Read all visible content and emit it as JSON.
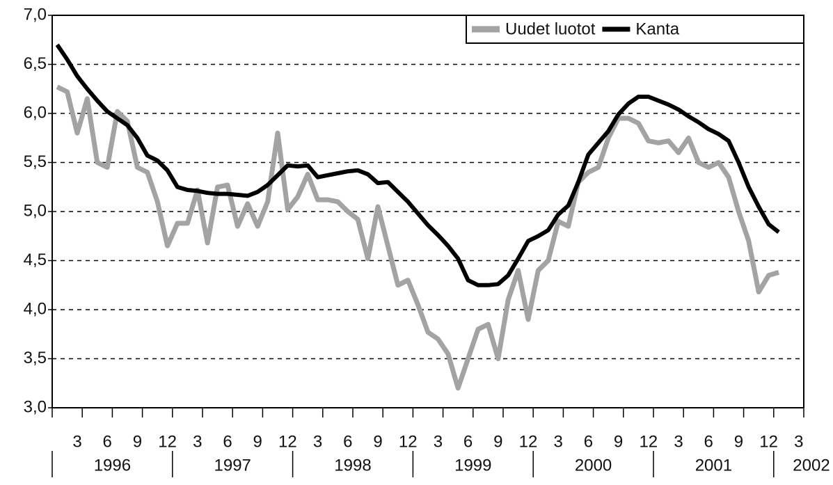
{
  "chart_data": {
    "type": "line",
    "categories": [
      null,
      null,
      "3",
      null,
      null,
      "6",
      null,
      null,
      "9",
      null,
      null,
      "12",
      null,
      null,
      "3",
      null,
      null,
      "6",
      null,
      null,
      "9",
      null,
      null,
      "12",
      null,
      null,
      "3",
      null,
      null,
      "6",
      null,
      null,
      "9",
      null,
      null,
      "12",
      null,
      null,
      "3",
      null,
      null,
      "6",
      null,
      null,
      "9",
      null,
      null,
      "12",
      null,
      null,
      "3",
      null,
      null,
      "6",
      null,
      null,
      "9",
      null,
      null,
      "12",
      null,
      null,
      "3",
      null,
      null,
      "6",
      null,
      null,
      "9",
      null,
      null,
      "12",
      null,
      null,
      "3"
    ],
    "years": [
      "1996",
      "1997",
      "1998",
      "1999",
      "2000",
      "2001",
      "2002"
    ],
    "series": [
      {
        "name": "Uudet luotot",
        "color": "#a3a3a3",
        "values": [
          6.27,
          6.22,
          5.8,
          6.15,
          5.5,
          5.45,
          6.02,
          5.92,
          5.45,
          5.4,
          5.1,
          4.65,
          4.88,
          4.88,
          5.22,
          4.68,
          5.25,
          5.27,
          4.85,
          5.08,
          4.85,
          5.1,
          5.8,
          5.02,
          5.15,
          5.38,
          5.12,
          5.12,
          5.1,
          5.0,
          4.92,
          4.52,
          5.05,
          4.65,
          4.25,
          4.3,
          4.05,
          3.77,
          3.7,
          3.55,
          3.2,
          3.5,
          3.8,
          3.85,
          3.5,
          4.1,
          4.4,
          3.9,
          4.4,
          4.5,
          4.9,
          4.85,
          5.3,
          5.4,
          5.45,
          5.75,
          5.95,
          5.95,
          5.9,
          5.72,
          5.7,
          5.72,
          5.6,
          5.75,
          5.5,
          5.45,
          5.5,
          5.35,
          5.0,
          4.7,
          4.18,
          4.35,
          4.38,
          null,
          null
        ]
      },
      {
        "name": "Kanta",
        "color": "#000000",
        "values": [
          6.7,
          6.55,
          6.38,
          6.25,
          6.13,
          6.02,
          5.95,
          5.88,
          5.75,
          5.57,
          5.52,
          5.42,
          5.25,
          5.22,
          5.21,
          5.19,
          5.18,
          5.18,
          5.17,
          5.16,
          5.2,
          5.27,
          5.37,
          5.47,
          5.46,
          5.47,
          5.35,
          5.37,
          5.39,
          5.41,
          5.42,
          5.38,
          5.29,
          5.3,
          5.2,
          5.1,
          4.98,
          4.86,
          4.76,
          4.65,
          4.52,
          4.3,
          4.25,
          4.25,
          4.26,
          4.35,
          4.52,
          4.7,
          4.75,
          4.81,
          4.97,
          5.06,
          5.3,
          5.58,
          5.7,
          5.82,
          5.99,
          6.1,
          6.17,
          6.17,
          6.13,
          6.09,
          6.04,
          5.97,
          5.91,
          5.84,
          5.79,
          5.72,
          5.5,
          5.25,
          5.05,
          4.87,
          4.79,
          null,
          null
        ]
      }
    ],
    "ylim": [
      3.0,
      7.0
    ],
    "yticks": [
      {
        "value": 3.0,
        "label": "3,0"
      },
      {
        "value": 3.5,
        "label": "3,5"
      },
      {
        "value": 4.0,
        "label": "4,0"
      },
      {
        "value": 4.5,
        "label": "4,5"
      },
      {
        "value": 5.0,
        "label": "5,0"
      },
      {
        "value": 5.5,
        "label": "5,5"
      },
      {
        "value": 6.0,
        "label": "6,0"
      },
      {
        "value": 6.5,
        "label": "6,5"
      },
      {
        "value": 7.0,
        "label": "7,0"
      }
    ],
    "grid": true,
    "legend": "upper right"
  }
}
